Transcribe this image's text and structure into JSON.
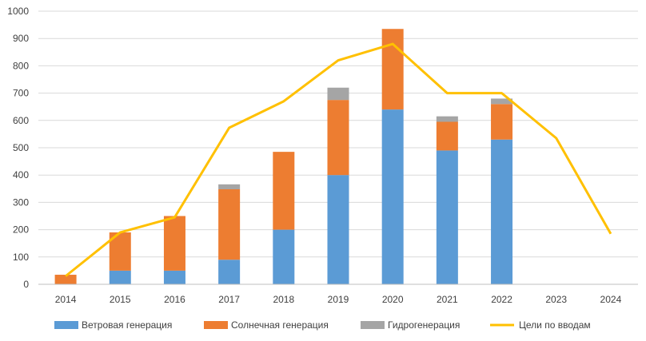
{
  "chart_data": {
    "type": "bar",
    "stacked": true,
    "categories": [
      "2014",
      "2015",
      "2016",
      "2017",
      "2018",
      "2019",
      "2020",
      "2021",
      "2022",
      "2023",
      "2024"
    ],
    "series": [
      {
        "name": "Ветровая генерация",
        "type": "bar",
        "color": "#5B9BD5",
        "values": [
          0,
          50,
          50,
          90,
          200,
          400,
          640,
          490,
          530,
          0,
          0
        ]
      },
      {
        "name": "Солнечная генерация",
        "type": "bar",
        "color": "#ED7D31",
        "values": [
          35,
          140,
          200,
          258,
          285,
          275,
          295,
          105,
          130,
          0,
          0
        ]
      },
      {
        "name": "Гидрогенерация",
        "type": "bar",
        "color": "#A5A5A5",
        "values": [
          0,
          0,
          0,
          18,
          0,
          45,
          0,
          20,
          20,
          0,
          0
        ]
      },
      {
        "name": "Цели по вводам",
        "type": "line",
        "color": "#FFC000",
        "values": [
          30,
          190,
          245,
          573,
          670,
          820,
          880,
          700,
          700,
          535,
          185
        ]
      }
    ],
    "yticks": [
      "0",
      "100",
      "200",
      "300",
      "400",
      "500",
      "600",
      "700",
      "800",
      "900",
      "1000"
    ],
    "ylim": [
      0,
      1000
    ],
    "grid": true,
    "legend_position": "bottom",
    "title": "",
    "xlabel": "",
    "ylabel": ""
  }
}
